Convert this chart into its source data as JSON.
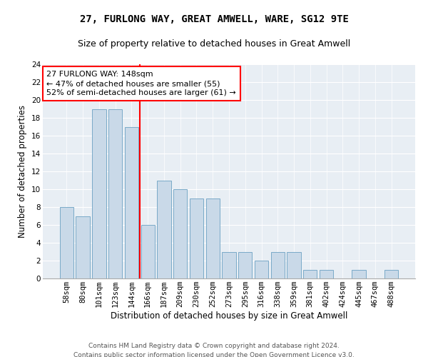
{
  "title1": "27, FURLONG WAY, GREAT AMWELL, WARE, SG12 9TE",
  "title2": "Size of property relative to detached houses in Great Amwell",
  "xlabel": "Distribution of detached houses by size in Great Amwell",
  "ylabel": "Number of detached properties",
  "categories": [
    "58sqm",
    "80sqm",
    "101sqm",
    "123sqm",
    "144sqm",
    "166sqm",
    "187sqm",
    "209sqm",
    "230sqm",
    "252sqm",
    "273sqm",
    "295sqm",
    "316sqm",
    "338sqm",
    "359sqm",
    "381sqm",
    "402sqm",
    "424sqm",
    "445sqm",
    "467sqm",
    "488sqm"
  ],
  "values": [
    8,
    7,
    19,
    19,
    17,
    6,
    11,
    10,
    9,
    9,
    3,
    3,
    2,
    3,
    3,
    1,
    1,
    0,
    1,
    0,
    1
  ],
  "bar_color": "#c9d9e8",
  "bar_edge_color": "#7aaac8",
  "vline_position": 4.5,
  "annotation_text": "27 FURLONG WAY: 148sqm\n← 47% of detached houses are smaller (55)\n52% of semi-detached houses are larger (61) →",
  "annotation_box_color": "white",
  "annotation_box_edge": "red",
  "vline_color": "red",
  "background_color": "#e8eef4",
  "ylim": [
    0,
    24
  ],
  "yticks": [
    0,
    2,
    4,
    6,
    8,
    10,
    12,
    14,
    16,
    18,
    20,
    22,
    24
  ],
  "footer1": "Contains HM Land Registry data © Crown copyright and database right 2024.",
  "footer2": "Contains public sector information licensed under the Open Government Licence v3.0.",
  "title1_fontsize": 10,
  "title2_fontsize": 9,
  "xlabel_fontsize": 8.5,
  "ylabel_fontsize": 8.5,
  "tick_fontsize": 7.5,
  "footer_fontsize": 6.5,
  "annotation_fontsize": 8
}
